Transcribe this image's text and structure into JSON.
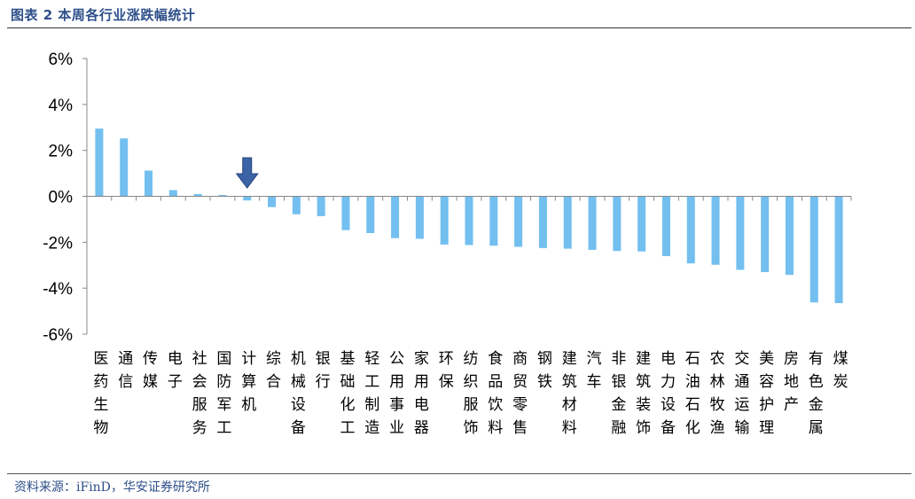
{
  "header": {
    "title": "图表 2 本周各行业涨跌幅统计"
  },
  "footer": {
    "source": "资料来源：iFinD，华安证券研究所"
  },
  "chart_data": {
    "type": "bar",
    "title": "",
    "xlabel": "",
    "ylabel": "",
    "ylim": [
      -6,
      6
    ],
    "yticks": [
      "6%",
      "4%",
      "2%",
      "0%",
      "-2%",
      "-4%",
      "-6%"
    ],
    "grid": false,
    "legend": "none",
    "bar_color": "#72bff0",
    "axis_color": "#888888",
    "arrow_color": "#3b63a6",
    "highlight_category": "计算机",
    "categories": [
      "医药生物",
      "通信",
      "传媒",
      "电子",
      "社会服务",
      "国防军工",
      "计算机",
      "综合",
      "机械设备",
      "银行",
      "基础化工",
      "轻工制造",
      "公用事业",
      "家用电器",
      "环保",
      "纺织服饰",
      "食品饮料",
      "商贸零售",
      "钢铁",
      "建筑材料",
      "汽车",
      "非银金融",
      "建筑装饰",
      "电力设备",
      "石油石化",
      "农林牧渔",
      "交通运输",
      "美容护理",
      "房地产",
      "有色金属",
      "煤炭"
    ],
    "values": [
      2.95,
      2.52,
      1.12,
      0.27,
      0.1,
      0.06,
      -0.18,
      -0.47,
      -0.78,
      -0.86,
      -1.47,
      -1.6,
      -1.82,
      -1.85,
      -2.1,
      -2.12,
      -2.15,
      -2.2,
      -2.25,
      -2.28,
      -2.33,
      -2.38,
      -2.4,
      -2.6,
      -2.92,
      -2.98,
      -3.2,
      -3.3,
      -3.42,
      -4.62,
      -4.65
    ]
  }
}
